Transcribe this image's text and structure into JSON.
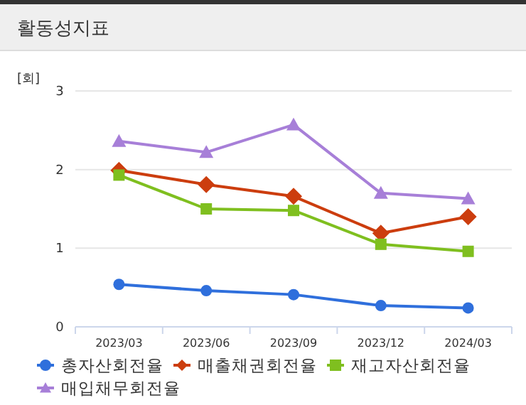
{
  "chart_data": {
    "type": "line",
    "title": "활동성지표",
    "ylabel": "[회]",
    "categories": [
      "2023/03",
      "2023/06",
      "2023/09",
      "2023/12",
      "2024/03"
    ],
    "ylim": [
      0,
      3
    ],
    "yticks": [
      0,
      1,
      2,
      3
    ],
    "grid": "y",
    "legend": "bottom",
    "series": [
      {
        "name": "총자산회전율",
        "color": "#2f6fdc",
        "marker": "circle",
        "values": [
          0.54,
          0.46,
          0.41,
          0.27,
          0.24
        ]
      },
      {
        "name": "매출채권회전율",
        "color": "#cc3d0e",
        "marker": "diamond",
        "values": [
          1.99,
          1.81,
          1.66,
          1.19,
          1.4
        ]
      },
      {
        "name": "재고자산회전율",
        "color": "#7fbf1f",
        "marker": "square",
        "values": [
          1.93,
          1.5,
          1.48,
          1.05,
          0.96
        ]
      },
      {
        "name": "매입채무회전율",
        "color": "#a77fd8",
        "marker": "triangle",
        "values": [
          2.36,
          2.22,
          2.57,
          1.7,
          1.63
        ]
      }
    ]
  }
}
